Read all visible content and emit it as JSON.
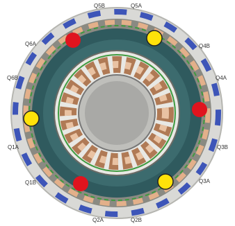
{
  "labels": [
    "Q5B",
    "Q5A",
    "Q4B",
    "Q4A",
    "Q3B",
    "Q3A",
    "Q2B",
    "Q2A",
    "Q1B",
    "Q1A",
    "Q6B",
    "Q6A"
  ]
}
